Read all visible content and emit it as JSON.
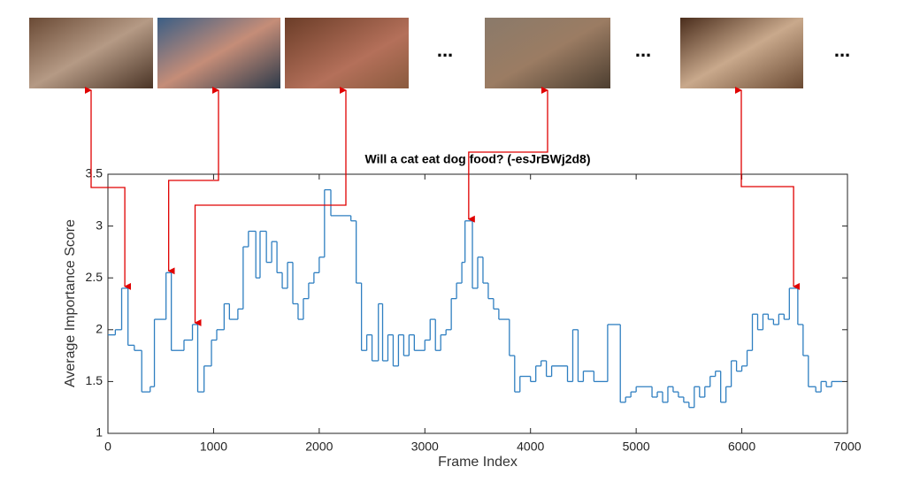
{
  "chart_data": {
    "type": "step",
    "title": "Will a cat eat dog food? (-esJrBWj2d8)",
    "x_label": "Frame Index",
    "y_label": "Average Importance Score",
    "xlim": [
      0,
      7000
    ],
    "xticks": [
      0,
      1000,
      2000,
      3000,
      4000,
      5000,
      6000,
      7000
    ],
    "ylim": [
      1,
      3.5
    ],
    "yticks": [
      1,
      1.5,
      2,
      2.5,
      3,
      3.5
    ],
    "ellipses": [
      "...",
      "...",
      "..."
    ],
    "series": [
      {
        "color": "#2f7fc1",
        "x": [
          0,
          70,
          130,
          190,
          250,
          320,
          400,
          440,
          550,
          600,
          720,
          800,
          850,
          910,
          980,
          1030,
          1100,
          1150,
          1230,
          1280,
          1330,
          1400,
          1440,
          1500,
          1550,
          1600,
          1650,
          1700,
          1750,
          1800,
          1850,
          1900,
          1950,
          2000,
          2050,
          2110,
          2300,
          2350,
          2400,
          2450,
          2500,
          2560,
          2600,
          2650,
          2700,
          2750,
          2800,
          2850,
          2900,
          3000,
          3050,
          3100,
          3150,
          3200,
          3250,
          3300,
          3350,
          3380,
          3450,
          3500,
          3550,
          3600,
          3650,
          3700,
          3800,
          3850,
          3900,
          4000,
          4050,
          4100,
          4150,
          4200,
          4350,
          4400,
          4450,
          4500,
          4600,
          4730,
          4850,
          4900,
          4950,
          5000,
          5150,
          5200,
          5250,
          5300,
          5350,
          5400,
          5450,
          5500,
          5550,
          5600,
          5650,
          5700,
          5750,
          5800,
          5850,
          5900,
          5950,
          6000,
          6050,
          6100,
          6150,
          6200,
          6250,
          6300,
          6350,
          6400,
          6450,
          6530,
          6580,
          6630,
          6700,
          6750,
          6800,
          6850,
          6950
        ],
        "values": [
          1.95,
          2.0,
          2.4,
          1.85,
          1.8,
          1.4,
          1.45,
          2.1,
          2.55,
          1.8,
          1.9,
          2.05,
          1.4,
          1.65,
          1.9,
          2.0,
          2.25,
          2.1,
          2.2,
          2.8,
          2.95,
          2.5,
          2.95,
          2.65,
          2.85,
          2.55,
          2.4,
          2.65,
          2.25,
          2.1,
          2.3,
          2.45,
          2.55,
          2.7,
          3.35,
          3.1,
          3.05,
          2.45,
          1.8,
          1.95,
          1.7,
          2.25,
          1.7,
          1.95,
          1.65,
          1.95,
          1.75,
          1.95,
          1.8,
          1.9,
          2.1,
          1.8,
          1.95,
          2.0,
          2.3,
          2.45,
          2.65,
          3.05,
          2.4,
          2.7,
          2.45,
          2.3,
          2.2,
          2.1,
          1.75,
          1.4,
          1.55,
          1.5,
          1.65,
          1.7,
          1.55,
          1.65,
          1.5,
          2.0,
          1.5,
          1.6,
          1.5,
          2.05,
          1.3,
          1.35,
          1.4,
          1.45,
          1.35,
          1.4,
          1.3,
          1.45,
          1.4,
          1.35,
          1.3,
          1.25,
          1.45,
          1.35,
          1.45,
          1.55,
          1.6,
          1.3,
          1.45,
          1.7,
          1.6,
          1.65,
          1.8,
          2.15,
          2.0,
          2.15,
          2.1,
          2.05,
          2.15,
          2.1,
          2.4,
          2.05,
          1.75,
          1.45,
          1.4,
          1.5,
          1.45,
          1.5,
          1.5
        ]
      }
    ]
  }
}
